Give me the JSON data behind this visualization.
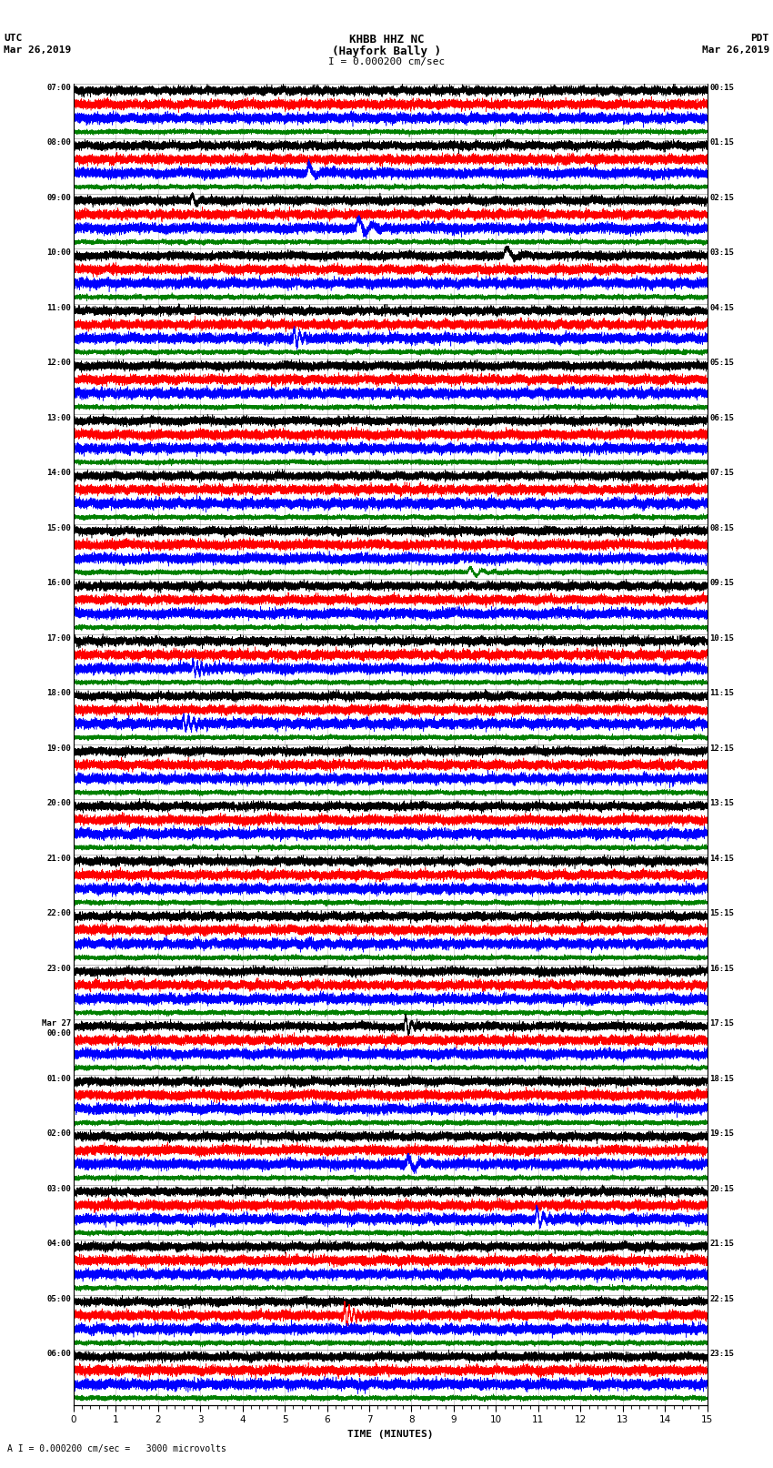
{
  "title_line1": "KHBB HHZ NC",
  "title_line2": "(Hayfork Bally )",
  "scale_text": "I = 0.000200 cm/sec",
  "footer_text": "A I = 0.000200 cm/sec =   3000 microvolts",
  "xlabel": "TIME (MINUTES)",
  "colors": [
    "black",
    "red",
    "blue",
    "green"
  ],
  "background_color": "white",
  "fig_width": 8.5,
  "fig_height": 16.13,
  "dpi": 100,
  "minutes_per_row": 15,
  "left_times": [
    "07:00",
    "08:00",
    "09:00",
    "10:00",
    "11:00",
    "12:00",
    "13:00",
    "14:00",
    "15:00",
    "16:00",
    "17:00",
    "18:00",
    "19:00",
    "20:00",
    "21:00",
    "22:00",
    "23:00",
    "Mar 27\n00:00",
    "01:00",
    "02:00",
    "03:00",
    "04:00",
    "05:00",
    "06:00"
  ],
  "right_times": [
    "00:15",
    "01:15",
    "02:15",
    "03:15",
    "04:15",
    "05:15",
    "06:15",
    "07:15",
    "08:15",
    "09:15",
    "10:15",
    "11:15",
    "12:15",
    "13:15",
    "14:15",
    "15:15",
    "16:15",
    "17:15",
    "18:15",
    "19:15",
    "20:15",
    "21:15",
    "22:15",
    "23:15"
  ]
}
